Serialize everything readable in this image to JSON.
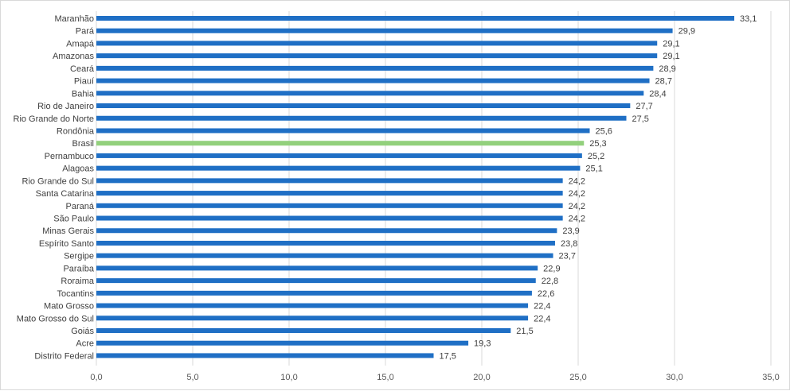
{
  "chart_data": {
    "type": "bar",
    "orientation": "horizontal",
    "title": "",
    "xlabel": "",
    "ylabel": "",
    "xlim": [
      0,
      35
    ],
    "x_ticks": [
      0,
      5,
      10,
      15,
      20,
      25,
      30,
      35
    ],
    "x_tick_labels": [
      "0,0",
      "5,0",
      "10,0",
      "15,0",
      "20,0",
      "25,0",
      "30,0",
      "35,0"
    ],
    "grid": true,
    "legend": "none",
    "highlight_category": "Brasil",
    "colors": {
      "bar": "#1f6fc5",
      "highlight": "#92d07c",
      "grid": "#d9d9d9",
      "text": "#404040"
    },
    "categories": [
      "Maranhão",
      "Pará",
      "Amapá",
      "Amazonas",
      "Ceará",
      "Piauí",
      "Bahia",
      "Rio de Janeiro",
      "Rio Grande do Norte",
      "Rondônia",
      "Brasil",
      "Pernambuco",
      "Alagoas",
      "Rio Grande do Sul",
      "Santa Catarina",
      "Paraná",
      "São Paulo",
      "Minas Gerais",
      "Espírito Santo",
      "Sergipe",
      "Paraíba",
      "Roraima",
      "Tocantins",
      "Mato Grosso",
      "Mato Grosso do Sul",
      "Goiás",
      "Acre",
      "Distrito Federal"
    ],
    "values": [
      33.1,
      29.9,
      29.1,
      29.1,
      28.9,
      28.7,
      28.4,
      27.7,
      27.5,
      25.6,
      25.3,
      25.2,
      25.1,
      24.2,
      24.2,
      24.2,
      24.2,
      23.9,
      23.8,
      23.7,
      22.9,
      22.8,
      22.6,
      22.4,
      22.4,
      21.5,
      19.3,
      17.5
    ],
    "value_labels": [
      "33,1",
      "29,9",
      "29,1",
      "29,1",
      "28,9",
      "28,7",
      "28,4",
      "27,7",
      "27,5",
      "25,6",
      "25,3",
      "25,2",
      "25,1",
      "24,2",
      "24,2",
      "24,2",
      "24,2",
      "23,9",
      "23,8",
      "23,7",
      "22,9",
      "22,8",
      "22,6",
      "22,4",
      "22,4",
      "21,5",
      "19,3",
      "17,5"
    ]
  }
}
